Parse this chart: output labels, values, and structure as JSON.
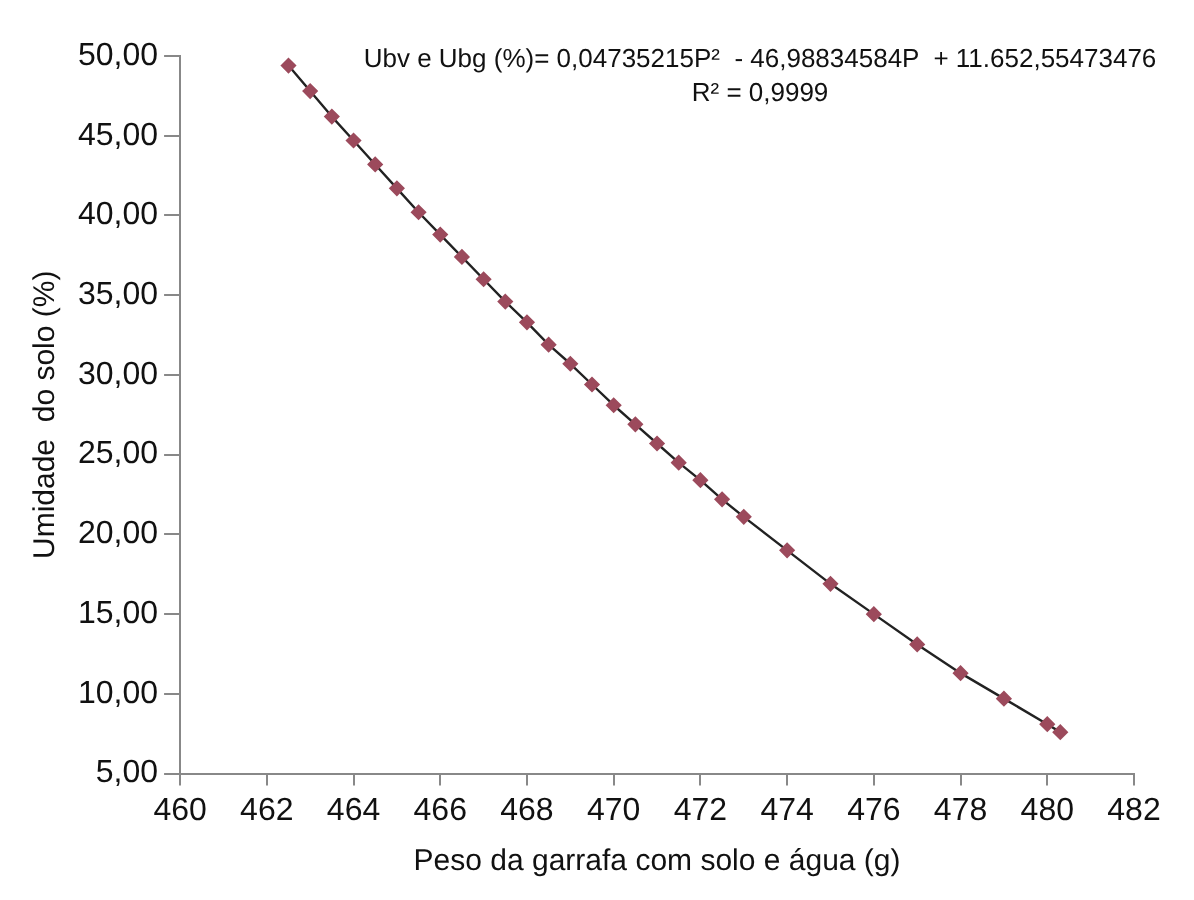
{
  "chart_data": {
    "type": "scatter",
    "xlabel": "Peso da garrafa com solo e água (g)",
    "ylabel": "Umidade  do solo (%)",
    "xlim": [
      460,
      482
    ],
    "xticks": [
      460,
      462,
      464,
      466,
      468,
      470,
      472,
      474,
      476,
      478,
      480,
      482
    ],
    "ylim": [
      5,
      50
    ],
    "yticks": [
      {
        "value": 5,
        "label": "5,00"
      },
      {
        "value": 10,
        "label": "10,00"
      },
      {
        "value": 15,
        "label": "15,00"
      },
      {
        "value": 20,
        "label": "20,00"
      },
      {
        "value": 25,
        "label": "25,00"
      },
      {
        "value": 30,
        "label": "30,00"
      },
      {
        "value": 35,
        "label": "35,00"
      },
      {
        "value": 40,
        "label": "40,00"
      },
      {
        "value": 45,
        "label": "45,00"
      },
      {
        "value": 50,
        "label": "50,00"
      }
    ],
    "grid": false,
    "legend": false,
    "marker": "diamond",
    "series": [
      {
        "color": "#9c4a5c",
        "x": [
          462.5,
          463,
          463.5,
          464,
          464.5,
          465,
          465.5,
          466,
          466.5,
          467,
          467.5,
          468,
          468.5,
          469,
          469.5,
          470,
          470.5,
          471,
          471.5,
          472,
          472.5,
          473,
          474,
          475,
          476,
          477,
          478,
          479,
          480,
          480.3
        ],
        "values": [
          49.4,
          47.8,
          46.2,
          44.7,
          43.2,
          41.7,
          40.2,
          38.8,
          37.4,
          36.0,
          34.6,
          33.3,
          31.9,
          30.7,
          29.4,
          28.1,
          26.9,
          25.7,
          24.5,
          23.4,
          22.2,
          21.1,
          19.0,
          16.9,
          15.0,
          13.1,
          11.3,
          9.7,
          8.1,
          7.6
        ]
      },
      {
        "type": "line",
        "color": "#222222",
        "marker": "none",
        "x": [
          462.5,
          463,
          463.5,
          464,
          464.5,
          465,
          465.5,
          466,
          466.5,
          467,
          467.5,
          468,
          468.5,
          469,
          469.5,
          470,
          470.5,
          471,
          471.5,
          472,
          472.5,
          473,
          474,
          475,
          476,
          477,
          478,
          479,
          480,
          480.3
        ],
        "values": [
          49.4,
          47.8,
          46.2,
          44.7,
          43.2,
          41.7,
          40.2,
          38.8,
          37.4,
          36.0,
          34.6,
          33.3,
          31.9,
          30.7,
          29.4,
          28.1,
          26.9,
          25.7,
          24.5,
          23.4,
          22.2,
          21.1,
          19.0,
          16.9,
          15.0,
          13.1,
          11.3,
          9.7,
          8.1,
          7.6
        ]
      }
    ],
    "annotations": [
      "Ubv e Ubg (%)= 0,04735215P²  - 46,98834584P  + 11.652,55473476",
      "R² = 0,9999"
    ]
  }
}
